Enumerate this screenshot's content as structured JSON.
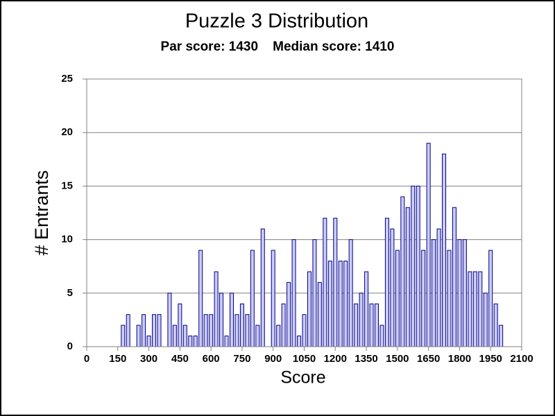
{
  "chart_data": {
    "type": "bar",
    "title": "Puzzle 3 Distribution",
    "subtitle": "Par score: 1430    Median score: 1410",
    "x_label": "Score",
    "y_label": "# Entrants",
    "x": [
      175,
      200,
      225,
      250,
      275,
      300,
      325,
      350,
      375,
      400,
      425,
      450,
      475,
      500,
      525,
      550,
      575,
      600,
      625,
      650,
      675,
      700,
      725,
      750,
      775,
      800,
      825,
      850,
      875,
      900,
      925,
      950,
      975,
      1000,
      1025,
      1050,
      1075,
      1100,
      1125,
      1150,
      1175,
      1200,
      1225,
      1250,
      1275,
      1300,
      1325,
      1350,
      1375,
      1400,
      1425,
      1450,
      1475,
      1500,
      1525,
      1550,
      1575,
      1600,
      1625,
      1650,
      1675,
      1700,
      1725,
      1750,
      1775,
      1800,
      1825,
      1850,
      1875,
      1900,
      1925,
      1950,
      1975,
      2000
    ],
    "values": [
      2,
      3,
      0,
      2,
      3,
      1,
      3,
      3,
      0,
      5,
      2,
      4,
      2,
      1,
      1,
      9,
      3,
      3,
      7,
      5,
      1,
      5,
      3,
      4,
      3,
      9,
      2,
      11,
      0,
      9,
      2,
      4,
      6,
      10,
      1,
      3,
      7,
      10,
      6,
      12,
      8,
      12,
      8,
      8,
      10,
      4,
      5,
      7,
      4,
      4,
      2,
      12,
      11,
      9,
      14,
      13,
      15,
      15,
      9,
      19,
      10,
      11,
      18,
      9,
      13,
      10,
      10,
      7,
      7,
      7,
      5,
      9,
      4,
      2
    ],
    "color": "#ccccff",
    "edge_color": "#000080",
    "xlim": [
      0,
      2100
    ],
    "xticks": [
      0,
      150,
      300,
      450,
      600,
      750,
      900,
      1050,
      1200,
      1350,
      1500,
      1650,
      1800,
      1950,
      2100
    ],
    "ylim": [
      0,
      25
    ],
    "yticks": [
      0,
      5,
      10,
      15,
      20,
      25
    ],
    "grid": true
  }
}
